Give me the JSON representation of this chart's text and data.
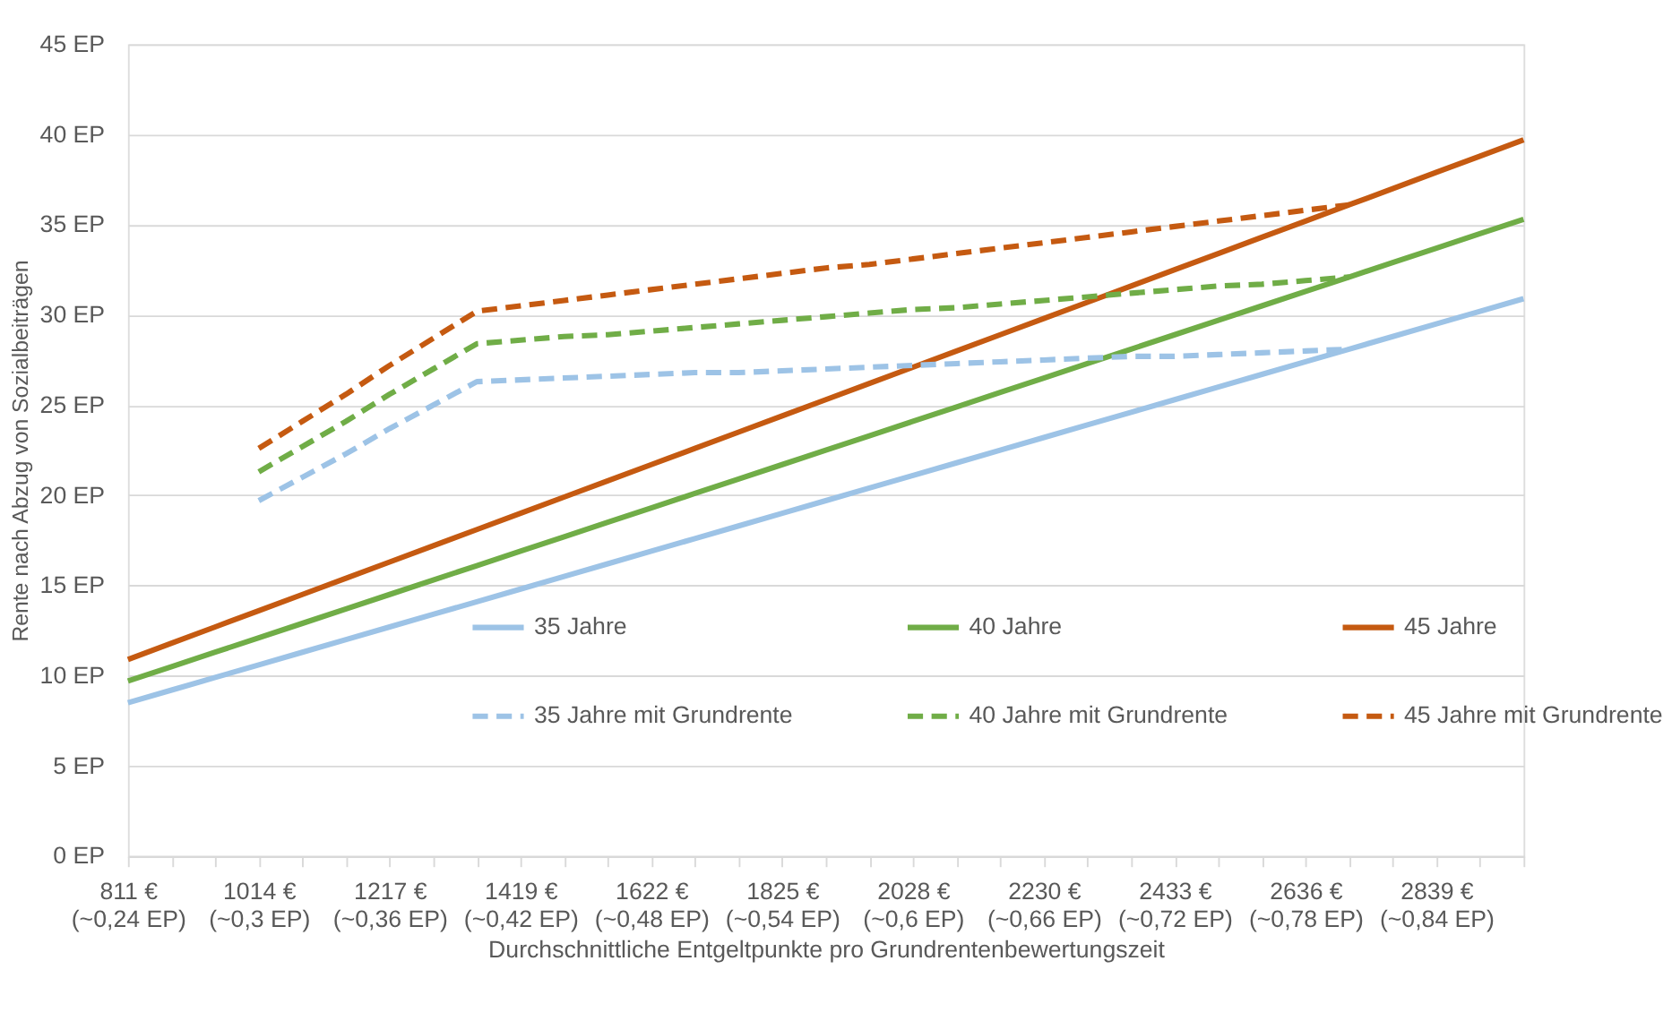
{
  "chart_data": {
    "type": "line",
    "xlabel": "Durchschnittliche Entgeltpunkte  pro Grundrentenbewertungszeit",
    "ylabel": "Rente nach Abzug von Sozialbeiträgen",
    "categories": [
      "811 €\n(~0,24 EP)",
      null,
      null,
      "1014 €\n(~0,3 EP)",
      null,
      null,
      "1217 €\n(~0,36 EP)",
      null,
      null,
      "1419 €\n(~0,42 EP)",
      null,
      null,
      "1622 €\n(~0,48 EP)",
      null,
      null,
      "1825 €\n(~0,54 EP)",
      null,
      null,
      "2028 €\n(~0,6 EP)",
      null,
      null,
      "2230 €\n(~0,66 EP)",
      null,
      null,
      "2433 €\n(~0,72 EP)",
      null,
      null,
      "2636 €\n(~0,78 EP)",
      null,
      null,
      "2839 €\n(~0,84 EP)",
      null,
      null
    ],
    "series": [
      {
        "name": "35 Jahre",
        "color": "#9dc3e6",
        "line_style": "solid",
        "values": [
          8.5,
          9.2,
          9.9,
          10.6,
          11.3,
          12.0,
          12.7,
          13.4,
          14.1,
          14.8,
          15.5,
          16.2,
          16.9,
          17.6,
          18.3,
          19.0,
          19.7,
          20.4,
          21.1,
          21.8,
          22.5,
          23.2,
          23.9,
          24.6,
          25.3,
          26.0,
          26.7,
          27.4,
          28.1,
          28.8,
          29.5,
          30.2,
          30.9
        ]
      },
      {
        "name": "40  Jahre",
        "color": "#70ad47",
        "line_style": "solid",
        "values": [
          9.7,
          10.5,
          11.3,
          12.1,
          12.9,
          13.7,
          14.5,
          15.3,
          16.1,
          16.9,
          17.7,
          18.5,
          19.3,
          20.1,
          20.9,
          21.7,
          22.5,
          23.3,
          24.1,
          24.9,
          25.7,
          26.5,
          27.3,
          28.1,
          28.9,
          29.7,
          30.5,
          31.3,
          32.1,
          32.9,
          33.7,
          34.5,
          35.3
        ]
      },
      {
        "name": "45 Jahre",
        "color": "#c55a11",
        "line_style": "solid",
        "values": [
          10.9,
          11.8,
          12.7,
          13.6,
          14.5,
          15.4,
          16.3,
          17.2,
          18.1,
          19.0,
          19.9,
          20.8,
          21.7,
          22.6,
          23.5,
          24.4,
          25.3,
          26.2,
          27.1,
          28.0,
          28.9,
          29.8,
          30.7,
          31.6,
          32.5,
          33.4,
          34.3,
          35.2,
          36.1,
          37.0,
          37.9,
          38.8,
          39.7
        ]
      },
      {
        "name": "35 Jahre mit Grundrente",
        "color": "#9dc3e6",
        "line_style": "dashed",
        "values": [
          null,
          null,
          null,
          19.7,
          21.0,
          22.3,
          23.7,
          25.0,
          26.3,
          26.4,
          26.5,
          26.6,
          26.7,
          26.8,
          26.8,
          26.9,
          27.0,
          27.1,
          27.2,
          27.3,
          27.4,
          27.5,
          27.6,
          27.7,
          27.7,
          27.8,
          27.9,
          28.0,
          28.1,
          null,
          null,
          null,
          null
        ]
      },
      {
        "name": "40 Jahre mit Grundrente",
        "color": "#70ad47",
        "line_style": "dashed",
        "values": [
          null,
          null,
          null,
          21.3,
          22.7,
          24.1,
          25.6,
          27.0,
          28.4,
          28.6,
          28.8,
          28.9,
          29.1,
          29.3,
          29.5,
          29.7,
          29.9,
          30.1,
          30.3,
          30.4,
          30.6,
          30.8,
          31.0,
          31.2,
          31.4,
          31.6,
          31.7,
          31.9,
          32.1,
          null,
          null,
          null,
          null
        ]
      },
      {
        "name": "45 Jahre mit Grundrente",
        "color": "#c55a11",
        "line_style": "dashed",
        "values": [
          null,
          null,
          null,
          22.6,
          24.1,
          25.6,
          27.2,
          28.7,
          30.2,
          30.5,
          30.8,
          31.1,
          31.4,
          31.7,
          32.0,
          32.3,
          32.6,
          32.8,
          33.1,
          33.4,
          33.7,
          34.0,
          34.3,
          34.6,
          34.9,
          35.2,
          35.5,
          35.8,
          36.1,
          null,
          null,
          null,
          null
        ]
      }
    ],
    "ylim": [
      0,
      45
    ],
    "yticks": [
      {
        "value": 0,
        "label": "0 EP"
      },
      {
        "value": 5,
        "label": "5 EP"
      },
      {
        "value": 10,
        "label": "10 EP"
      },
      {
        "value": 15,
        "label": "15 EP"
      },
      {
        "value": 20,
        "label": "20 EP"
      },
      {
        "value": 25,
        "label": "25 EP"
      },
      {
        "value": 30,
        "label": "30 EP"
      },
      {
        "value": 35,
        "label": "35 EP"
      },
      {
        "value": 40,
        "label": "40 EP"
      },
      {
        "value": 45,
        "label": "45 EP"
      }
    ],
    "grid": "y",
    "legend": "bottom right",
    "marker": "none"
  }
}
